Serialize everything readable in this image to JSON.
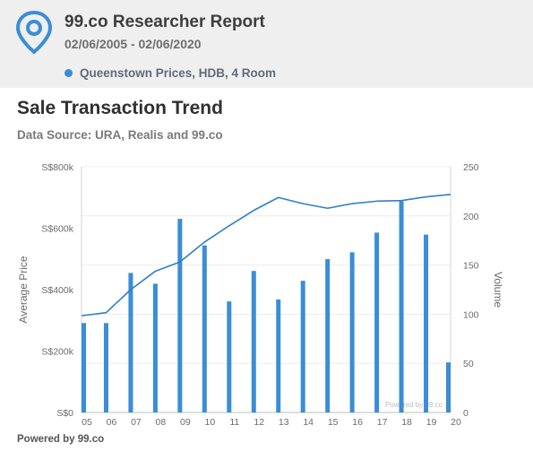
{
  "header": {
    "title": "99.co Researcher Report",
    "dates": "02/06/2005 - 02/06/2020",
    "legend_label": "Queenstown Prices, HDB, 4 Room",
    "logo_icon": "location-pin-icon"
  },
  "section": {
    "title": "Sale Transaction Trend",
    "data_source": "Data Source: URA, Realis and 99.co"
  },
  "footer": {
    "text": "Powered by 99.co"
  },
  "colors": {
    "accent": "#3a8dd6",
    "bar": "#3a8dd6",
    "line": "#2f7fc6",
    "header_bg": "#efefef",
    "axis_text": "#6b6b6b",
    "grid": "#ececec"
  },
  "chart_data": {
    "type": "bar+line",
    "categories": [
      "05",
      "06",
      "07",
      "08",
      "09",
      "10",
      "11",
      "12",
      "13",
      "14",
      "15",
      "16",
      "17",
      "18",
      "19",
      "20"
    ],
    "series": [
      {
        "name": "Volume",
        "kind": "bar",
        "axis": "right",
        "values": [
          91,
          91,
          142,
          131,
          197,
          170,
          113,
          144,
          115,
          134,
          156,
          163,
          183,
          215,
          181,
          51
        ]
      },
      {
        "name": "Average Price",
        "kind": "line",
        "axis": "left",
        "values": [
          315000,
          325000,
          400000,
          460000,
          490000,
          555000,
          608000,
          658000,
          700000,
          680000,
          665000,
          680000,
          688000,
          690000,
          702000,
          710000
        ]
      }
    ],
    "y_left": {
      "label": "Average Price",
      "ticks": [
        "S$0",
        "S$200k",
        "S$400k",
        "S$600k",
        "S$800k"
      ],
      "tick_values": [
        0,
        200000,
        400000,
        600000,
        800000
      ],
      "ylim": [
        0,
        800000
      ]
    },
    "y_right": {
      "label": "Volume",
      "ticks": [
        "0",
        "50",
        "100",
        "150",
        "200",
        "250"
      ],
      "tick_values": [
        0,
        50,
        100,
        150,
        200,
        250
      ],
      "ylim": [
        0,
        250
      ]
    },
    "grid": true,
    "watermark": "Powered by 99.co"
  }
}
